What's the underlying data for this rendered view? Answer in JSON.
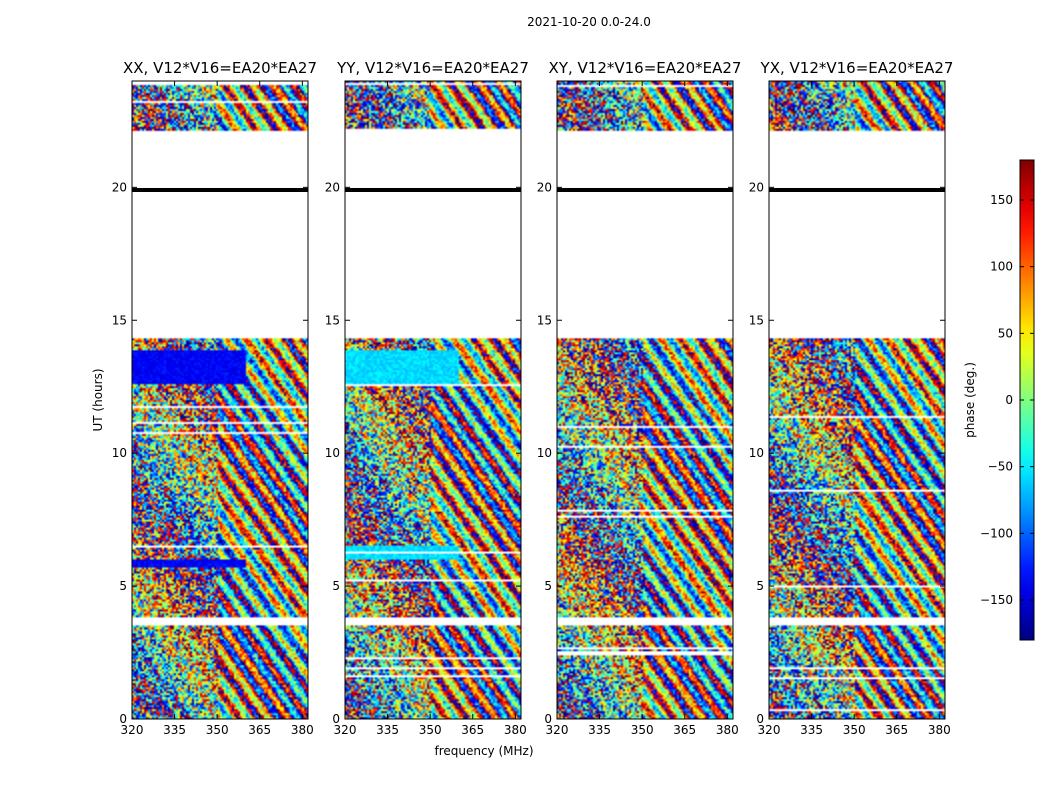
{
  "figure_title": "2021-10-20 0.0-24.0",
  "shared_xlabel": "frequency (MHz)",
  "colorbar": {
    "label": "phase (deg.)",
    "range": [
      -180,
      180
    ],
    "ticks": [
      150,
      100,
      50,
      0,
      -50,
      -100,
      -150
    ],
    "tick_labels": [
      "150",
      "100",
      "50",
      "0",
      "−50",
      "−100",
      "−150"
    ],
    "colormap": "jet",
    "colors": [
      "#00007f",
      "#0000ff",
      "#00ffff",
      "#7fff7f",
      "#ffff00",
      "#ff0000",
      "#7f0000"
    ]
  },
  "chart_data": [
    {
      "type": "heatmap",
      "title": "XX, V12*V16=EA20*EA27",
      "xlabel": "",
      "ylabel": "UT (hours)",
      "xlim": [
        320,
        382
      ],
      "ylim": [
        0,
        24
      ],
      "xticks": [
        320,
        335,
        350,
        365,
        380
      ],
      "yticks": [
        0,
        5,
        10,
        15,
        20
      ],
      "value_range": [
        -180,
        180
      ],
      "flagged_gaps_hours": [
        [
          3.55,
          3.85
        ],
        [
          14.3,
          22.1
        ]
      ],
      "dense_bands_hours": [
        [
          12.6,
          13.9
        ],
        [
          5.7,
          6.0
        ]
      ],
      "marker_line_hour": 19.9,
      "data_coverage": "wrapped phase (deg.) vs frequency and UT, sampled 0–24 h"
    },
    {
      "type": "heatmap",
      "title": "YY, V12*V16=EA20*EA27",
      "xlabel": "",
      "ylabel": "",
      "xlim": [
        320,
        382
      ],
      "ylim": [
        0,
        24
      ],
      "xticks": [
        320,
        335,
        350,
        365,
        380
      ],
      "yticks": [
        0,
        5,
        10,
        15,
        20
      ],
      "value_range": [
        -180,
        180
      ],
      "flagged_gaps_hours": [
        [
          3.55,
          3.85
        ],
        [
          14.3,
          22.1
        ]
      ],
      "dense_bands_hours": [
        [
          12.6,
          13.9
        ],
        [
          6.0,
          6.5
        ]
      ],
      "marker_line_hour": 19.9,
      "data_coverage": "wrapped phase (deg.) vs frequency and UT, sampled 0–24 h"
    },
    {
      "type": "heatmap",
      "title": "XY, V12*V16=EA20*EA27",
      "xlabel": "",
      "ylabel": "",
      "xlim": [
        320,
        382
      ],
      "ylim": [
        0,
        24
      ],
      "xticks": [
        320,
        335,
        350,
        365,
        380
      ],
      "yticks": [
        0,
        5,
        10,
        15,
        20
      ],
      "value_range": [
        -180,
        180
      ],
      "flagged_gaps_hours": [
        [
          3.55,
          3.85
        ],
        [
          14.3,
          22.1
        ]
      ],
      "dense_bands_hours": [],
      "marker_line_hour": 19.9,
      "data_coverage": "wrapped phase (deg.) vs frequency and UT, sampled 0–24 h"
    },
    {
      "type": "heatmap",
      "title": "YX, V12*V16=EA20*EA27",
      "xlabel": "",
      "ylabel": "",
      "xlim": [
        320,
        382
      ],
      "ylim": [
        0,
        24
      ],
      "xticks": [
        320,
        335,
        350,
        365,
        380
      ],
      "yticks": [
        0,
        5,
        10,
        15,
        20
      ],
      "value_range": [
        -180,
        180
      ],
      "flagged_gaps_hours": [
        [
          3.55,
          3.85
        ],
        [
          14.3,
          22.1
        ]
      ],
      "dense_bands_hours": [],
      "marker_line_hour": 19.9,
      "data_coverage": "wrapped phase (deg.) vs frequency and UT, sampled 0–24 h"
    }
  ]
}
